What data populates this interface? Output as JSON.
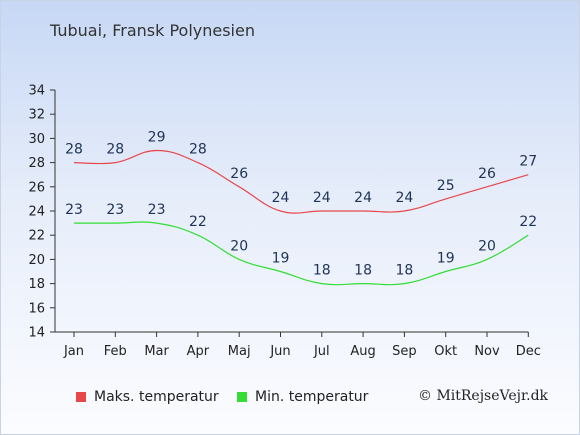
{
  "title": "Tubuai, Fransk Polynesien",
  "credit": "© MitRejseVejr.dk",
  "legend": {
    "max_label": "Maks. temperatur",
    "min_label": "Min. temperatur"
  },
  "colors": {
    "max": "#e8474a",
    "min": "#33dd33",
    "axis": "#333333",
    "label": "#1f3355"
  },
  "chart_data": {
    "type": "line",
    "categories": [
      "Jan",
      "Feb",
      "Mar",
      "Apr",
      "Maj",
      "Jun",
      "Jul",
      "Aug",
      "Sep",
      "Okt",
      "Nov",
      "Dec"
    ],
    "series": [
      {
        "name": "Maks. temperatur",
        "values": [
          28,
          28,
          29,
          28,
          26,
          24,
          24,
          24,
          24,
          25,
          26,
          27
        ]
      },
      {
        "name": "Min. temperatur",
        "values": [
          23,
          23,
          23,
          22,
          20,
          19,
          18,
          18,
          18,
          19,
          20,
          22
        ]
      }
    ],
    "ylim": [
      14,
      34
    ],
    "yticks": [
      14,
      16,
      18,
      20,
      22,
      24,
      26,
      28,
      30,
      32,
      34
    ],
    "grid": false,
    "legend_position": "bottom"
  }
}
